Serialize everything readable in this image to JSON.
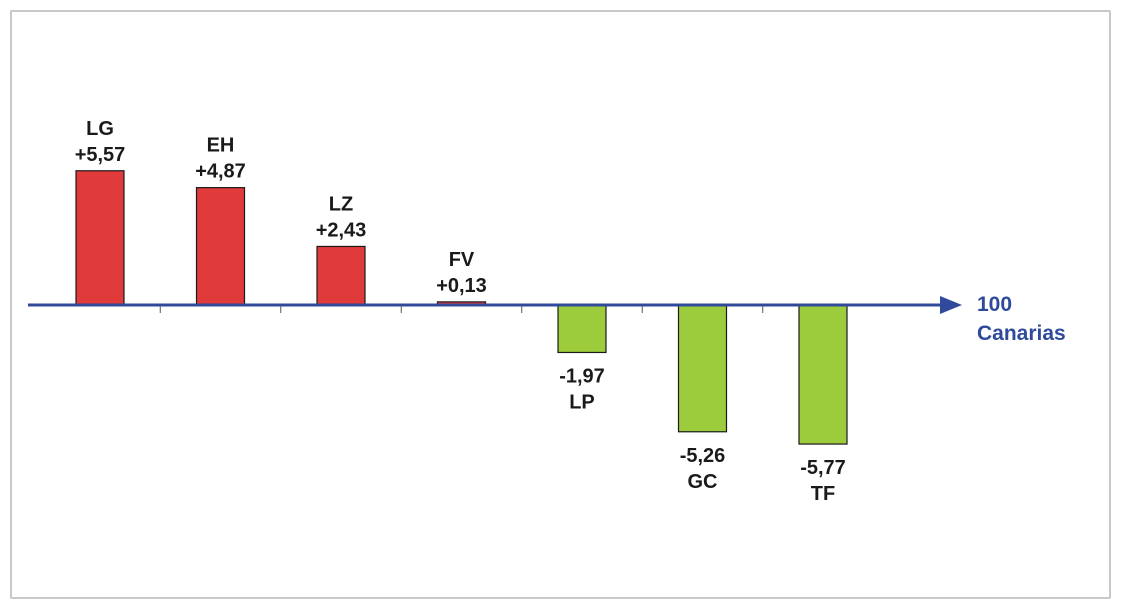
{
  "chart_data": {
    "type": "bar",
    "categories": [
      "LG",
      "EH",
      "LZ",
      "FV",
      "LP",
      "GC",
      "TF"
    ],
    "values": [
      5.57,
      4.87,
      2.43,
      0.13,
      -1.97,
      -5.26,
      -5.77
    ],
    "value_labels": [
      "+5,57",
      "+4,87",
      "+2,43",
      "+0,13",
      "-1,97",
      "-5,26",
      "-5,77"
    ],
    "baseline": 100,
    "axis_label": [
      "100",
      "Canarias"
    ],
    "title": "",
    "xlabel": "",
    "ylabel": "",
    "grid": false,
    "legend": "none",
    "colors": {
      "positive": "#e03a3a",
      "negative": "#9ccb3b",
      "axis": "#2f4a9a",
      "label": "#1a1a1a",
      "axis_label": "#2f4a9a"
    }
  }
}
